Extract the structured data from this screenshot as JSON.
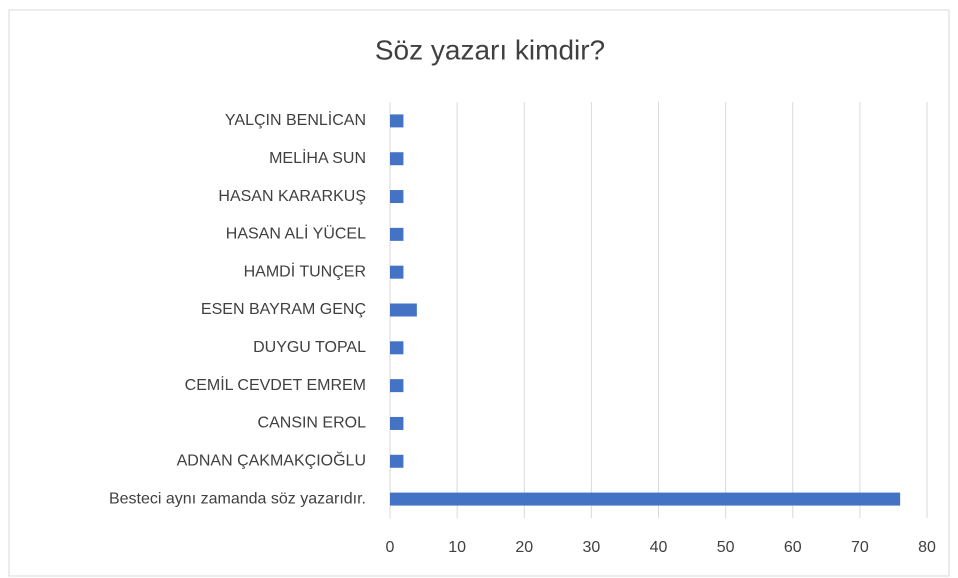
{
  "chart_data": {
    "type": "bar",
    "orientation": "horizontal",
    "title": "Söz yazarı kimdir?",
    "categories": [
      "YALÇIN BENLİCAN",
      "MELİHA SUN",
      "HASAN KARARKUŞ",
      "HASAN ALİ YÜCEL",
      "HAMDİ TUNÇER",
      "ESEN BAYRAM GENÇ",
      "DUYGU TOPAL",
      "CEMİL CEVDET EMREM",
      "CANSIN EROL",
      "ADNAN ÇAKMAKÇIOĞLU",
      "Besteci aynı zamanda söz yazarıdır."
    ],
    "values": [
      2,
      2,
      2,
      2,
      2,
      4,
      2,
      2,
      2,
      2,
      76
    ],
    "color": "#4472c4",
    "xlim": [
      0,
      80
    ],
    "xticks": [
      0,
      10,
      20,
      30,
      40,
      50,
      60,
      70,
      80
    ],
    "grid": true
  }
}
